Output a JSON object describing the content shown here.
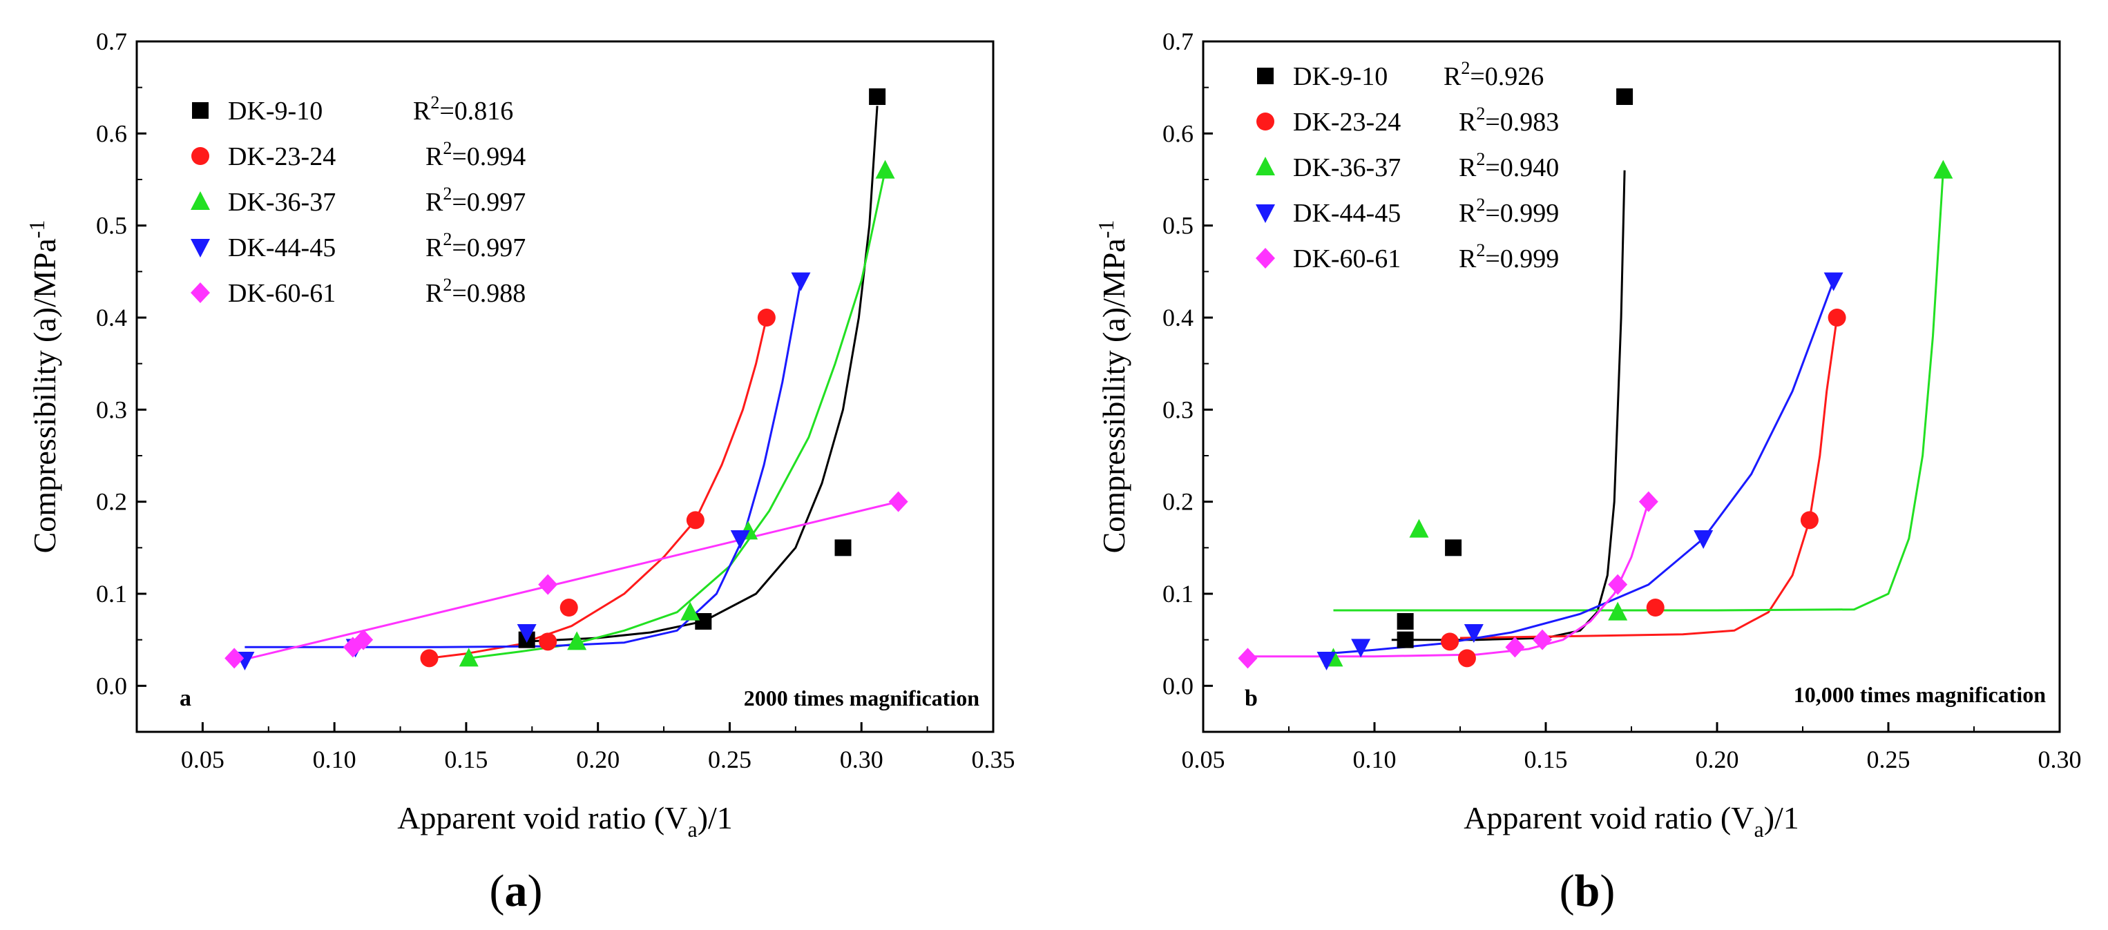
{
  "colors": {
    "DK-9-10": "#000000",
    "DK-23-24": "#ff1a1a",
    "DK-36-37": "#22e022",
    "DK-44-45": "#1a1aff",
    "DK-60-61": "#ff33ff"
  },
  "chart_data": [
    {
      "type": "scatter",
      "panel_letter": "a",
      "caption_prefix": "(",
      "caption_letter": "a",
      "caption_suffix": ")",
      "annotation": "2000 times magnification",
      "xlabel": {
        "pre": "Apparent void ratio (V",
        "sub": "a",
        "post": ")/1"
      },
      "ylabel": {
        "pre": "Compressibility  (a)/MPa",
        "sup": "-1"
      },
      "xlim": [
        0.025,
        0.35
      ],
      "ylim": [
        -0.05,
        0.7
      ],
      "xticks": [
        0.05,
        0.1,
        0.15,
        0.2,
        0.25,
        0.3,
        0.35
      ],
      "xtick_labels": [
        "0.05",
        "0.10",
        "0.15",
        "0.20",
        "0.25",
        "0.30",
        "0.35"
      ],
      "yticks": [
        0.0,
        0.1,
        0.2,
        0.3,
        0.4,
        0.5,
        0.6,
        0.7
      ],
      "ytick_labels": [
        "0.0",
        "0.1",
        "0.2",
        "0.3",
        "0.4",
        "0.5",
        "0.6",
        "0.7"
      ],
      "legend_position": "top-left",
      "series": [
        {
          "name": "DK-9-10",
          "marker": "square",
          "r2_prefix": "R",
          "r2_sup": "2",
          "r2_value": "=0.816",
          "points": [
            [
              0.173,
              0.05
            ],
            [
              0.24,
              0.07
            ],
            [
              0.293,
              0.15
            ],
            [
              0.306,
              0.64
            ]
          ],
          "fit": [
            [
              0.172,
              0.048
            ],
            [
              0.2,
              0.052
            ],
            [
              0.22,
              0.058
            ],
            [
              0.24,
              0.07
            ],
            [
              0.26,
              0.1
            ],
            [
              0.275,
              0.15
            ],
            [
              0.285,
              0.22
            ],
            [
              0.293,
              0.3
            ],
            [
              0.299,
              0.4
            ],
            [
              0.303,
              0.5
            ],
            [
              0.306,
              0.63
            ]
          ]
        },
        {
          "name": "DK-23-24",
          "marker": "circle",
          "r2_prefix": "R",
          "r2_sup": "2",
          "r2_value": "=0.994",
          "points": [
            [
              0.136,
              0.03
            ],
            [
              0.181,
              0.048
            ],
            [
              0.189,
              0.085
            ],
            [
              0.237,
              0.18
            ],
            [
              0.264,
              0.4
            ]
          ],
          "fit": [
            [
              0.136,
              0.03
            ],
            [
              0.15,
              0.035
            ],
            [
              0.17,
              0.045
            ],
            [
              0.19,
              0.065
            ],
            [
              0.21,
              0.1
            ],
            [
              0.225,
              0.14
            ],
            [
              0.237,
              0.18
            ],
            [
              0.247,
              0.24
            ],
            [
              0.255,
              0.3
            ],
            [
              0.26,
              0.35
            ],
            [
              0.264,
              0.4
            ]
          ]
        },
        {
          "name": "DK-36-37",
          "marker": "triangle-up",
          "r2_prefix": "R",
          "r2_sup": "2",
          "r2_value": "=0.997",
          "points": [
            [
              0.151,
              0.03
            ],
            [
              0.192,
              0.048
            ],
            [
              0.235,
              0.08
            ],
            [
              0.257,
              0.168
            ],
            [
              0.309,
              0.56
            ]
          ],
          "fit": [
            [
              0.151,
              0.03
            ],
            [
              0.17,
              0.037
            ],
            [
              0.19,
              0.045
            ],
            [
              0.21,
              0.06
            ],
            [
              0.23,
              0.08
            ],
            [
              0.25,
              0.13
            ],
            [
              0.265,
              0.19
            ],
            [
              0.28,
              0.27
            ],
            [
              0.29,
              0.35
            ],
            [
              0.3,
              0.44
            ],
            [
              0.309,
              0.56
            ]
          ]
        },
        {
          "name": "DK-44-45",
          "marker": "triangle-down",
          "r2_prefix": "R",
          "r2_sup": "2",
          "r2_value": "=0.997",
          "points": [
            [
              0.066,
              0.028
            ],
            [
              0.108,
              0.042
            ],
            [
              0.173,
              0.058
            ],
            [
              0.254,
              0.16
            ],
            [
              0.277,
              0.44
            ]
          ],
          "fit": [
            [
              0.066,
              0.042
            ],
            [
              0.1,
              0.042
            ],
            [
              0.14,
              0.042
            ],
            [
              0.18,
              0.043
            ],
            [
              0.21,
              0.047
            ],
            [
              0.23,
              0.06
            ],
            [
              0.245,
              0.1
            ],
            [
              0.255,
              0.16
            ],
            [
              0.263,
              0.24
            ],
            [
              0.27,
              0.33
            ],
            [
              0.277,
              0.44
            ]
          ]
        },
        {
          "name": "DK-60-61",
          "marker": "diamond",
          "r2_prefix": "R",
          "r2_sup": "2",
          "r2_value": "=0.988",
          "points": [
            [
              0.062,
              0.03
            ],
            [
              0.107,
              0.042
            ],
            [
              0.111,
              0.05
            ],
            [
              0.181,
              0.11
            ],
            [
              0.314,
              0.2
            ]
          ],
          "fit": [
            [
              0.062,
              0.026
            ],
            [
              0.314,
              0.2
            ]
          ]
        }
      ]
    },
    {
      "type": "scatter",
      "panel_letter": "b",
      "caption_prefix": "(",
      "caption_letter": "b",
      "caption_suffix": ")",
      "annotation": "10,000 times magnification",
      "xlabel": {
        "pre": "Apparent void ratio (V",
        "sub": "a",
        "post": ")/1"
      },
      "ylabel": {
        "pre": "Compressibility  (a)/MPa",
        "sup": "-1"
      },
      "xlim": [
        0.05,
        0.3
      ],
      "ylim": [
        -0.05,
        0.7
      ],
      "xticks": [
        0.05,
        0.1,
        0.15,
        0.2,
        0.25,
        0.3
      ],
      "xtick_labels": [
        "0.05",
        "0.10",
        "0.15",
        "0.20",
        "0.25",
        "0.30"
      ],
      "yticks": [
        0.0,
        0.1,
        0.2,
        0.3,
        0.4,
        0.5,
        0.6,
        0.7
      ],
      "ytick_labels": [
        "0.0",
        "0.1",
        "0.2",
        "0.3",
        "0.4",
        "0.5",
        "0.6",
        "0.7"
      ],
      "legend_position": "top-left",
      "series": [
        {
          "name": "DK-9-10",
          "marker": "square",
          "r2_prefix": "R",
          "r2_sup": "2",
          "r2_value": "=0.926",
          "points": [
            [
              0.109,
              0.07
            ],
            [
              0.109,
              0.05
            ],
            [
              0.123,
              0.15
            ],
            [
              0.173,
              0.64
            ]
          ],
          "fit": [
            [
              0.105,
              0.05
            ],
            [
              0.13,
              0.05
            ],
            [
              0.15,
              0.052
            ],
            [
              0.16,
              0.06
            ],
            [
              0.165,
              0.08
            ],
            [
              0.168,
              0.12
            ],
            [
              0.17,
              0.2
            ],
            [
              0.171,
              0.3
            ],
            [
              0.172,
              0.4
            ],
            [
              0.173,
              0.56
            ]
          ]
        },
        {
          "name": "DK-23-24",
          "marker": "circle",
          "r2_prefix": "R",
          "r2_sup": "2",
          "r2_value": "=0.983",
          "points": [
            [
              0.122,
              0.048
            ],
            [
              0.127,
              0.03
            ],
            [
              0.182,
              0.085
            ],
            [
              0.227,
              0.18
            ],
            [
              0.235,
              0.4
            ]
          ],
          "fit": [
            [
              0.125,
              0.052
            ],
            [
              0.16,
              0.054
            ],
            [
              0.19,
              0.056
            ],
            [
              0.205,
              0.06
            ],
            [
              0.215,
              0.08
            ],
            [
              0.222,
              0.12
            ],
            [
              0.227,
              0.18
            ],
            [
              0.23,
              0.25
            ],
            [
              0.232,
              0.32
            ],
            [
              0.235,
              0.4
            ]
          ]
        },
        {
          "name": "DK-36-37",
          "marker": "triangle-up",
          "r2_prefix": "R",
          "r2_sup": "2",
          "r2_value": "=0.940",
          "points": [
            [
              0.088,
              0.03
            ],
            [
              0.113,
              0.17
            ],
            [
              0.171,
              0.08
            ],
            [
              0.266,
              0.56
            ]
          ],
          "fit": [
            [
              0.088,
              0.082
            ],
            [
              0.2,
              0.082
            ],
            [
              0.24,
              0.083
            ],
            [
              0.25,
              0.1
            ],
            [
              0.256,
              0.16
            ],
            [
              0.26,
              0.25
            ],
            [
              0.263,
              0.38
            ],
            [
              0.266,
              0.56
            ]
          ]
        },
        {
          "name": "DK-44-45",
          "marker": "triangle-down",
          "r2_prefix": "R",
          "r2_sup": "2",
          "r2_value": "=0.999",
          "points": [
            [
              0.086,
              0.028
            ],
            [
              0.096,
              0.042
            ],
            [
              0.129,
              0.058
            ],
            [
              0.196,
              0.16
            ],
            [
              0.234,
              0.44
            ]
          ],
          "fit": [
            [
              0.086,
              0.035
            ],
            [
              0.1,
              0.039
            ],
            [
              0.12,
              0.046
            ],
            [
              0.14,
              0.058
            ],
            [
              0.16,
              0.078
            ],
            [
              0.18,
              0.11
            ],
            [
              0.196,
              0.16
            ],
            [
              0.21,
              0.23
            ],
            [
              0.222,
              0.32
            ],
            [
              0.234,
              0.44
            ]
          ]
        },
        {
          "name": "DK-60-61",
          "marker": "diamond",
          "r2_prefix": "R",
          "r2_sup": "2",
          "r2_value": "=0.999",
          "points": [
            [
              0.063,
              0.03
            ],
            [
              0.141,
              0.042
            ],
            [
              0.149,
              0.05
            ],
            [
              0.171,
              0.11
            ],
            [
              0.18,
              0.2
            ]
          ],
          "fit": [
            [
              0.063,
              0.032
            ],
            [
              0.1,
              0.032
            ],
            [
              0.13,
              0.034
            ],
            [
              0.145,
              0.04
            ],
            [
              0.155,
              0.05
            ],
            [
              0.163,
              0.07
            ],
            [
              0.17,
              0.1
            ],
            [
              0.175,
              0.14
            ],
            [
              0.18,
              0.2
            ]
          ]
        }
      ]
    }
  ]
}
